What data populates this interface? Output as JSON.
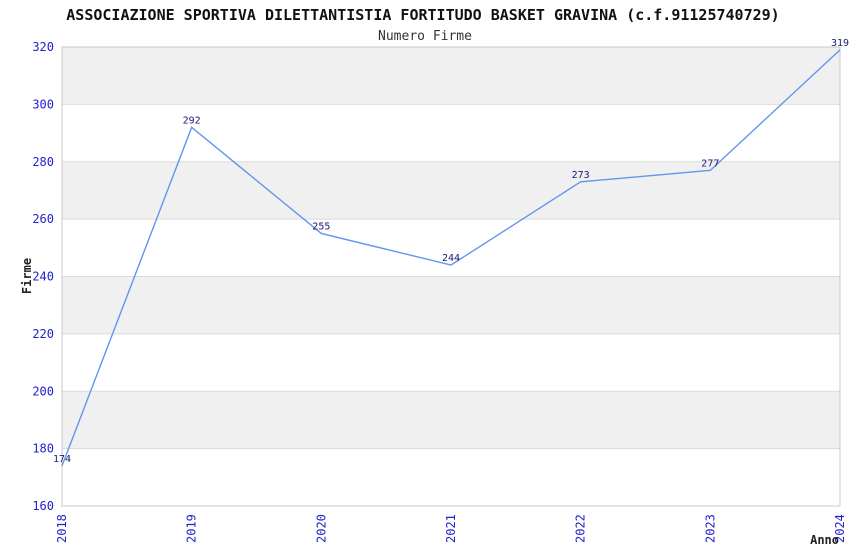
{
  "chart_data": {
    "type": "line",
    "title": "ASSOCIAZIONE SPORTIVA DILETTANTISTIA FORTITUDO BASKET GRAVINA (c.f.91125740729)",
    "subtitle": "Numero Firme",
    "xlabel": "Anno",
    "ylabel": "Firme",
    "categories": [
      "2018",
      "2019",
      "2020",
      "2021",
      "2022",
      "2023",
      "2024"
    ],
    "values": [
      174,
      292,
      255,
      244,
      273,
      277,
      319
    ],
    "point_labels": [
      "174",
      "292",
      "255",
      "244",
      "273",
      "277",
      "319"
    ],
    "ylim": [
      160,
      320
    ],
    "ytick_step": 20,
    "ytick_labels": [
      "160",
      "180",
      "200",
      "220",
      "240",
      "260",
      "280",
      "300",
      "320"
    ],
    "xtick_rotation_deg": 90,
    "grid": "horizontal-bands-alternating",
    "legend": "none",
    "colors": {
      "line": "#6495ED",
      "tick_labels": "#2222CC",
      "point_labels": "#1A1A70",
      "band_fill": "#F0F0F0",
      "grid_line": "#DCDCDC",
      "axis_border": "#C9C9C9",
      "title": "#111111",
      "subtitle": "#333333",
      "axis_label": "#222222",
      "background": "#FFFFFF"
    }
  }
}
